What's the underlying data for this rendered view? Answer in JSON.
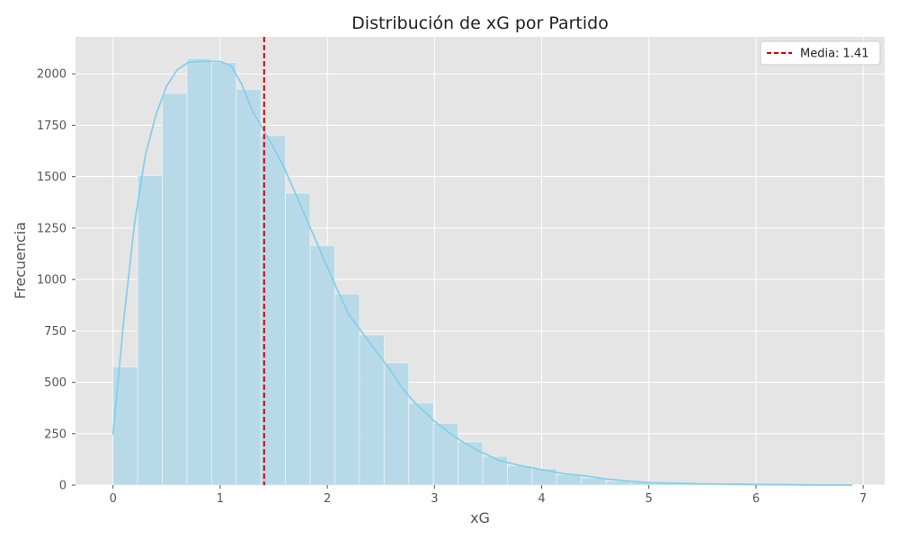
{
  "chart_data": {
    "type": "bar",
    "title": "Distribución de xG por Partido",
    "xlabel": "xG",
    "ylabel": "Frecuencia",
    "xlim": [
      -0.35,
      7.2
    ],
    "ylim": [
      0,
      2180
    ],
    "x_ticks": [
      0,
      1,
      2,
      3,
      4,
      5,
      6,
      7
    ],
    "y_ticks": [
      0,
      250,
      500,
      750,
      1000,
      1250,
      1500,
      1750,
      2000
    ],
    "grid": true,
    "legend_position": "top-right",
    "bar_color": "#b5d9e8",
    "kde_color": "#87ceeb",
    "background_color": "#e5e5e5",
    "bin_edges": [
      0,
      0.23,
      0.46,
      0.69,
      0.92,
      1.15,
      1.38,
      1.61,
      1.84,
      2.07,
      2.3,
      2.53,
      2.76,
      2.99,
      3.22,
      3.45,
      3.68,
      3.91,
      4.14,
      4.37,
      4.6,
      4.83,
      5.06,
      5.29,
      5.52,
      5.75,
      5.98,
      6.21,
      6.44,
      6.67,
      6.9
    ],
    "values": [
      575,
      1505,
      1905,
      2075,
      2055,
      1925,
      1700,
      1420,
      1165,
      930,
      730,
      595,
      400,
      300,
      210,
      140,
      95,
      80,
      50,
      35,
      20,
      15,
      10,
      8,
      6,
      5,
      4,
      3,
      2,
      1
    ],
    "series": [
      {
        "type": "line",
        "kind": "kde",
        "x": [
          0,
          0.1,
          0.2,
          0.3,
          0.4,
          0.5,
          0.6,
          0.7,
          0.8,
          0.9,
          1.0,
          1.1,
          1.2,
          1.3,
          1.4,
          1.5,
          1.6,
          1.7,
          1.8,
          1.9,
          2.0,
          2.1,
          2.2,
          2.3,
          2.4,
          2.5,
          2.6,
          2.7,
          2.8,
          2.9,
          3.0,
          3.2,
          3.4,
          3.6,
          3.8,
          4.0,
          4.2,
          4.4,
          4.6,
          4.8,
          5.0,
          5.5,
          6.0,
          6.5,
          6.9
        ],
        "y": [
          245,
          800,
          1270,
          1600,
          1800,
          1940,
          2020,
          2055,
          2060,
          2060,
          2060,
          2040,
          1950,
          1820,
          1730,
          1640,
          1540,
          1420,
          1300,
          1180,
          1060,
          940,
          830,
          760,
          690,
          620,
          550,
          470,
          410,
          360,
          310,
          230,
          170,
          120,
          95,
          75,
          55,
          45,
          30,
          20,
          12,
          6,
          3,
          1,
          0
        ]
      }
    ],
    "mean_line": {
      "x": 1.41,
      "color": "#dd0000",
      "label": "Media: 1.41"
    }
  }
}
